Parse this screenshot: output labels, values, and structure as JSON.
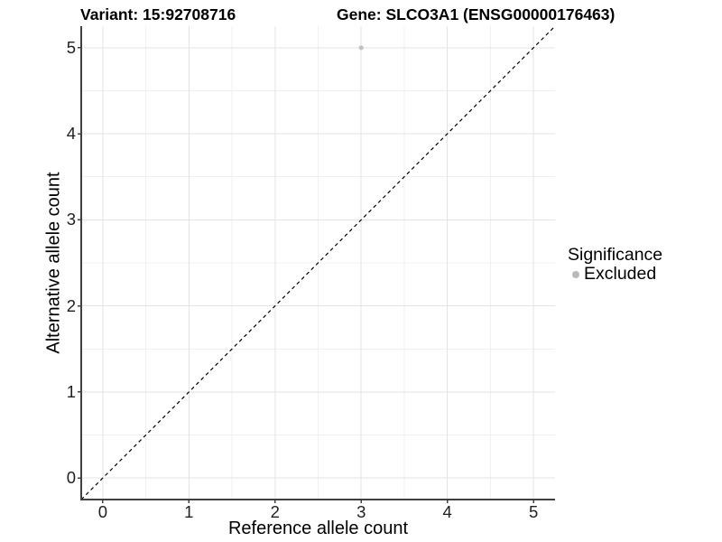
{
  "chart_data": {
    "type": "scatter",
    "title_left": "Variant: 15:92708716",
    "title_right": "Gene: SLCO3A1 (ENSG00000176463)",
    "xlabel": "Reference allele count",
    "ylabel": "Alternative allele count",
    "xlim": [
      -0.25,
      5.25
    ],
    "ylim": [
      -0.25,
      5.25
    ],
    "xticks": [
      0,
      1,
      2,
      3,
      4,
      5
    ],
    "yticks": [
      0,
      1,
      2,
      3,
      4,
      5
    ],
    "grid": "major+minor",
    "minor_step": 0.5,
    "panel_background": "#ffffff",
    "major_grid_color": "#e3e3e3",
    "minor_grid_color": "#f0f0f0",
    "axis_line_color": "#404040",
    "identity_line": {
      "style": "dashed",
      "color": "#000000",
      "from": [
        -0.25,
        -0.25
      ],
      "to": [
        5.25,
        5.25
      ]
    },
    "series": [
      {
        "name": "Excluded",
        "color": "#c2c2c2",
        "points": [
          {
            "x": 3,
            "y": 5
          }
        ]
      }
    ],
    "legend": {
      "title": "Significance",
      "position": "right",
      "items": [
        {
          "label": "Excluded",
          "color": "#b9b9b9",
          "marker": "circle"
        }
      ]
    }
  }
}
